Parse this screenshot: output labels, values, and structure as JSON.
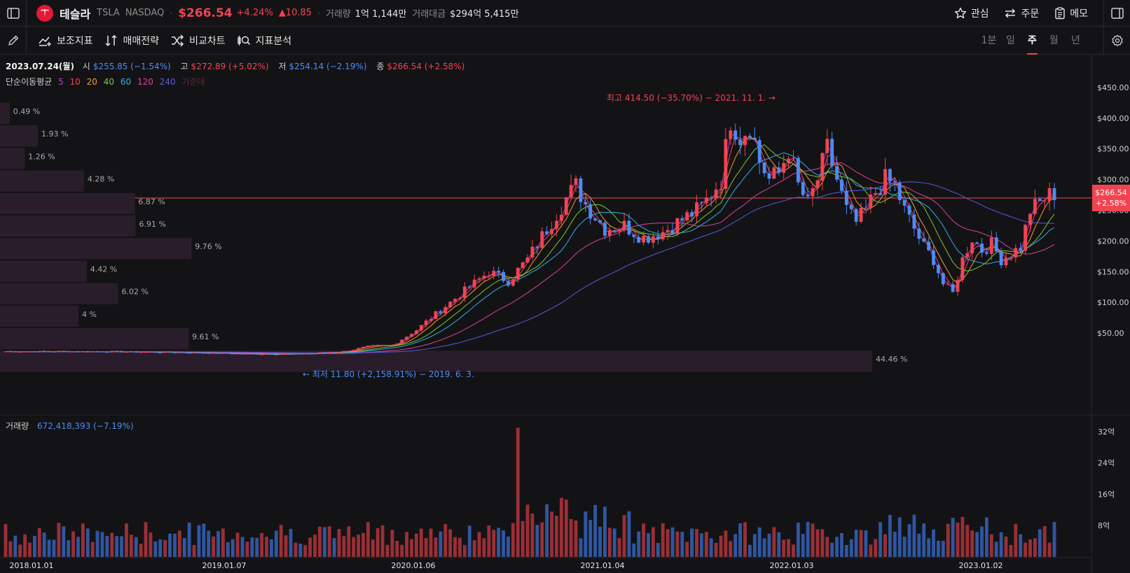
{
  "header": {
    "stock_name": "테슬라",
    "ticker": "TSLA",
    "exchange": "NASDAQ",
    "price": "$266.54",
    "change_pct": "+4.24%",
    "change_abs": "▲10.85",
    "volume_label": "거래량",
    "volume_value": "1억 1,144만",
    "amount_label": "거래대금",
    "amount_value": "$294억 5,415만",
    "watch_label": "관심",
    "order_label": "주문",
    "memo_label": "메모"
  },
  "toolbar": {
    "indicators_label": "보조지표",
    "strategy_label": "매매전략",
    "compare_label": "비교차트",
    "analysis_label": "지표분석",
    "periods": [
      "1분",
      "일",
      "주",
      "월",
      "년"
    ],
    "active_period": "주"
  },
  "ohlc": {
    "date": "2023.07.24(월)",
    "open_label": "시",
    "open_value": "$255.85 (−1.54%)",
    "high_label": "고",
    "high_value": "$272.89 (+5.02%)",
    "low_label": "저",
    "low_value": "$254.14 (−2.19%)",
    "close_label": "종",
    "close_value": "$266.54 (+2.58%)"
  },
  "moving_averages": {
    "label": "단순이동평균",
    "periods": [
      "5",
      "10",
      "20",
      "40",
      "60",
      "120",
      "240"
    ],
    "colors": [
      "#c03ad8",
      "#f04452",
      "#f0a030",
      "#7cc93a",
      "#2eb5e8",
      "#e040a0",
      "#5a5ae0"
    ],
    "extra_label": "기준대"
  },
  "annotations": {
    "high": "최고 414.50 (−35.70%) − 2021. 11. 1. →",
    "low": "← 최저 11.80 (+2,158.91%) − 2019. 6. 3."
  },
  "current_price_tag": {
    "price": "$266.54",
    "pct": "+2.58%"
  },
  "volume_info": {
    "label": "거래량",
    "value": "672,418,393 (−7.19%)"
  },
  "colors": {
    "up": "#f04452",
    "down": "#4c8bf5",
    "background": "#131315"
  },
  "chart_data": {
    "type": "candlestick",
    "x_ticks": [
      "2018.01.01",
      "2019.01.07",
      "2020.01.06",
      "2021.01.04",
      "2022.01.03",
      "2023.01.02"
    ],
    "y_ticks": [
      "$450.00",
      "$400.00",
      "$350.00",
      "$300.00",
      "$250.00",
      "$200.00",
      "$150.00",
      "$100.00",
      "$50.00"
    ],
    "ylim": [
      0,
      475
    ],
    "volume_ticks": [
      "32억",
      "24억",
      "16억",
      "8억"
    ],
    "volume_ylim": [
      0,
      35
    ],
    "current_price": 266.54,
    "price_path": [
      [
        0,
        20
      ],
      [
        20,
        20
      ],
      [
        40,
        18
      ],
      [
        50,
        16
      ],
      [
        60,
        16
      ],
      [
        70,
        20
      ],
      [
        75,
        28
      ],
      [
        80,
        30
      ],
      [
        85,
        55
      ],
      [
        88,
        75
      ],
      [
        92,
        100
      ],
      [
        96,
        125
      ],
      [
        100,
        150
      ],
      [
        104,
        135
      ],
      [
        108,
        170
      ],
      [
        112,
        220
      ],
      [
        116,
        270
      ],
      [
        118,
        290
      ],
      [
        120,
        260
      ],
      [
        124,
        220
      ],
      [
        128,
        225
      ],
      [
        132,
        205
      ],
      [
        136,
        215
      ],
      [
        140,
        235
      ],
      [
        144,
        255
      ],
      [
        148,
        300
      ],
      [
        150,
        400
      ],
      [
        152,
        370
      ],
      [
        154,
        390
      ],
      [
        156,
        330
      ],
      [
        158,
        300
      ],
      [
        160,
        310
      ],
      [
        162,
        350
      ],
      [
        164,
        290
      ],
      [
        166,
        260
      ],
      [
        168,
        300
      ],
      [
        170,
        350
      ],
      [
        172,
        300
      ],
      [
        174,
        250
      ],
      [
        176,
        230
      ],
      [
        178,
        250
      ],
      [
        180,
        280
      ],
      [
        182,
        300
      ],
      [
        184,
        290
      ],
      [
        186,
        250
      ],
      [
        188,
        220
      ],
      [
        190,
        190
      ],
      [
        192,
        170
      ],
      [
        194,
        130
      ],
      [
        196,
        115
      ],
      [
        198,
        170
      ],
      [
        200,
        205
      ],
      [
        202,
        185
      ],
      [
        204,
        195
      ],
      [
        206,
        170
      ],
      [
        208,
        180
      ],
      [
        210,
        190
      ],
      [
        212,
        250
      ],
      [
        214,
        262
      ],
      [
        216,
        275
      ],
      [
        217,
        266
      ]
    ],
    "volume_profile": [
      {
        "label": "0.49 %",
        "value": 0.49
      },
      {
        "label": "1.93 %",
        "value": 1.93
      },
      {
        "label": "1.26 %",
        "value": 1.26
      },
      {
        "label": "4.28 %",
        "value": 4.28
      },
      {
        "label": "6.87 %",
        "value": 6.87
      },
      {
        "label": "6.91 %",
        "value": 6.91
      },
      {
        "label": "9.76 %",
        "value": 9.76
      },
      {
        "label": "4.42 %",
        "value": 4.42
      },
      {
        "label": "6.02 %",
        "value": 6.02
      },
      {
        "label": "4 %",
        "value": 4
      },
      {
        "label": "9.61 %",
        "value": 9.61
      },
      {
        "label": "44.46 %",
        "value": 44.46
      }
    ]
  }
}
